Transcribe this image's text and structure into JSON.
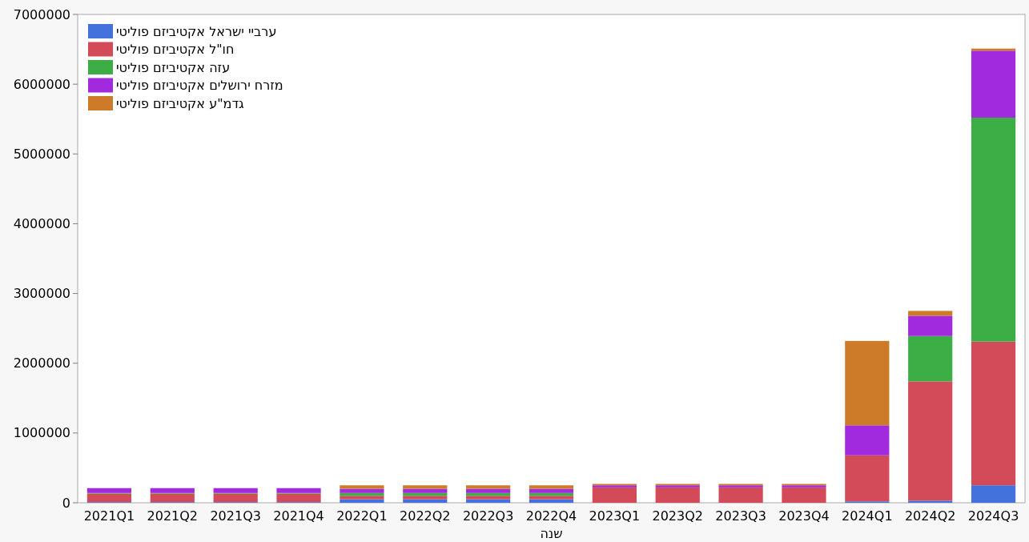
{
  "chart_data": {
    "type": "bar",
    "stacked": true,
    "xlabel": "שנה",
    "categories": [
      "2021Q1",
      "2021Q2",
      "2021Q3",
      "2021Q4",
      "2022Q1",
      "2022Q2",
      "2022Q3",
      "2022Q4",
      "2023Q1",
      "2023Q2",
      "2023Q3",
      "2023Q4",
      "2024Q1",
      "2024Q2",
      "2024Q3"
    ],
    "series": [
      {
        "name": "ערביי ישראל אקטיביזם פוליטי",
        "color": "#4472dc",
        "values": [
          10000,
          10000,
          10000,
          10000,
          50000,
          50000,
          50000,
          50000,
          0,
          0,
          0,
          0,
          20000,
          30000,
          250000
        ]
      },
      {
        "name": "חו\"ל אקטיביזם פוליטי",
        "color": "#d34a58",
        "values": [
          120000,
          120000,
          120000,
          120000,
          50000,
          50000,
          50000,
          50000,
          220000,
          220000,
          220000,
          220000,
          660000,
          1710000,
          2060000
        ]
      },
      {
        "name": "עזה אקטיביזם פוליטי",
        "color": "#3dae46",
        "values": [
          10000,
          10000,
          10000,
          10000,
          40000,
          40000,
          40000,
          40000,
          0,
          0,
          0,
          0,
          0,
          650000,
          3210000
        ]
      },
      {
        "name": "מזרח ירושלים אקטיביזם פוליטי",
        "color": "#a12ade",
        "values": [
          70000,
          70000,
          70000,
          70000,
          60000,
          60000,
          60000,
          60000,
          30000,
          30000,
          30000,
          30000,
          430000,
          290000,
          960000
        ]
      },
      {
        "name": "גדמ\"ע אקטיביזם פוליטי",
        "color": "#cd7a29",
        "values": [
          0,
          0,
          0,
          0,
          50000,
          50000,
          50000,
          50000,
          20000,
          20000,
          20000,
          20000,
          1210000,
          70000,
          30000
        ]
      }
    ],
    "ylim": [
      0,
      7000000
    ],
    "yticks": [
      0,
      1000000,
      2000000,
      3000000,
      4000000,
      5000000,
      6000000,
      7000000
    ],
    "legend": "top left"
  }
}
